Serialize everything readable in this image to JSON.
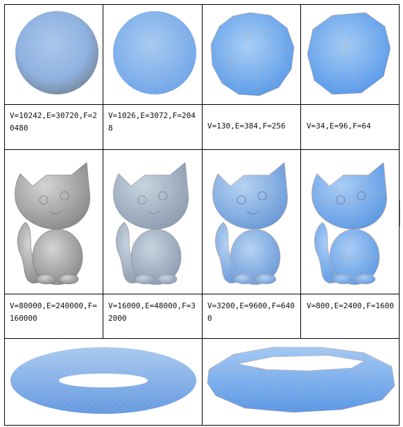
{
  "table": {
    "row1_captions": [
      "V=10242,E=30720,F=20480",
      "V=1026,E=3072,F=2048",
      "V=130,E=384,F=256",
      "V=34,E=96,F=64"
    ],
    "row2_captions": [
      "V=80000,E=240000,F=160000",
      "V=16000,E=48000,F=32000",
      "V=3200,E=9600,F=6400",
      "V=800,E=2400,F=1600"
    ]
  },
  "colors": {
    "mesh_blue": "#6fa8ee",
    "mesh_light": "#a9cdf6",
    "mesh_lines": "#c9a79a",
    "grey_model": "#a8a8a8",
    "border": "#000000"
  }
}
